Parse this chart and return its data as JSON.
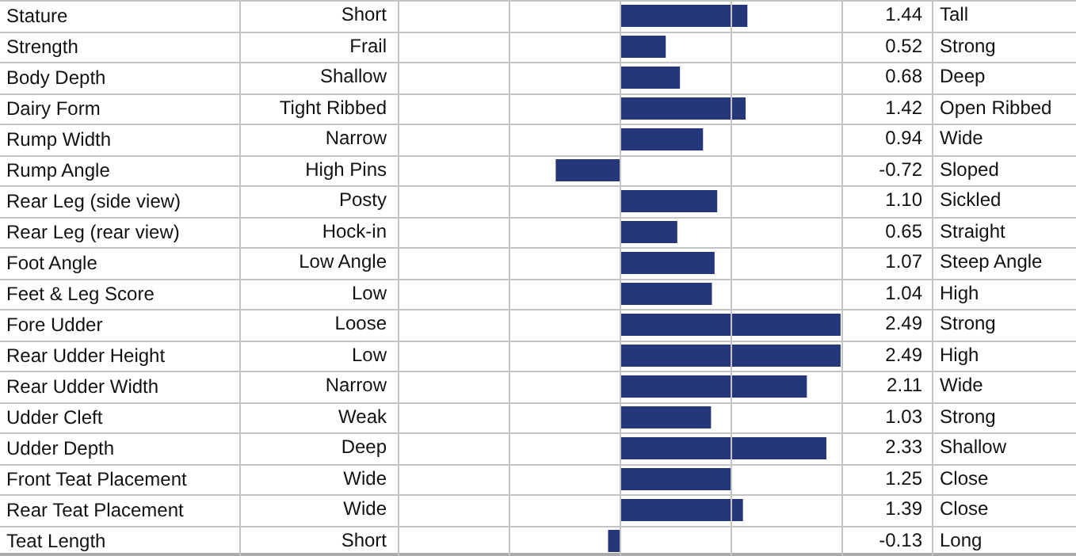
{
  "chart_data": {
    "type": "bar",
    "orientation": "horizontal",
    "categories": [
      "Stature",
      "Strength",
      "Body Depth",
      "Dairy Form",
      "Rump Width",
      "Rump Angle",
      "Rear Leg (side view)",
      "Rear Leg (rear view)",
      "Foot Angle",
      "Feet & Leg Score",
      "Fore Udder",
      "Rear Udder Height",
      "Rear Udder Width",
      "Udder Cleft",
      "Udder Depth",
      "Front Teat Placement",
      "Rear Teat Placement",
      "Teat Length"
    ],
    "values": [
      1.44,
      0.52,
      0.68,
      1.42,
      0.94,
      -0.72,
      1.1,
      0.65,
      1.07,
      1.04,
      2.49,
      2.49,
      2.11,
      1.03,
      2.33,
      1.25,
      1.39,
      -0.13
    ],
    "value_labels": [
      "1.44",
      "0.52",
      "0.68",
      "1.42",
      "0.94",
      "-0.72",
      "1.10",
      "0.65",
      "1.07",
      "1.04",
      "2.49",
      "2.49",
      "2.11",
      "1.03",
      "2.33",
      "1.25",
      "1.39",
      "-0.13"
    ],
    "color": "#25377a",
    "xlim": [
      -2.5,
      2.5
    ],
    "tick_labels": "y",
    "annotations": [
      "Short",
      "Frail",
      "Shallow",
      "Tight Ribbed",
      "Narrow",
      "High Pins",
      "Posty",
      "Hock-in",
      "Low Angle",
      "Low",
      "Loose",
      "Low",
      "Narrow",
      "Weak",
      "Deep",
      "Wide",
      "Wide",
      "Short",
      "Tall",
      "Strong",
      "Deep",
      "Open Ribbed",
      "Wide",
      "Sloped",
      "Sickled",
      "Straight",
      "Steep Angle",
      "High",
      "Strong",
      "High",
      "Wide",
      "Strong",
      "Shallow",
      "Close",
      "Close",
      "Long"
    ]
  }
}
